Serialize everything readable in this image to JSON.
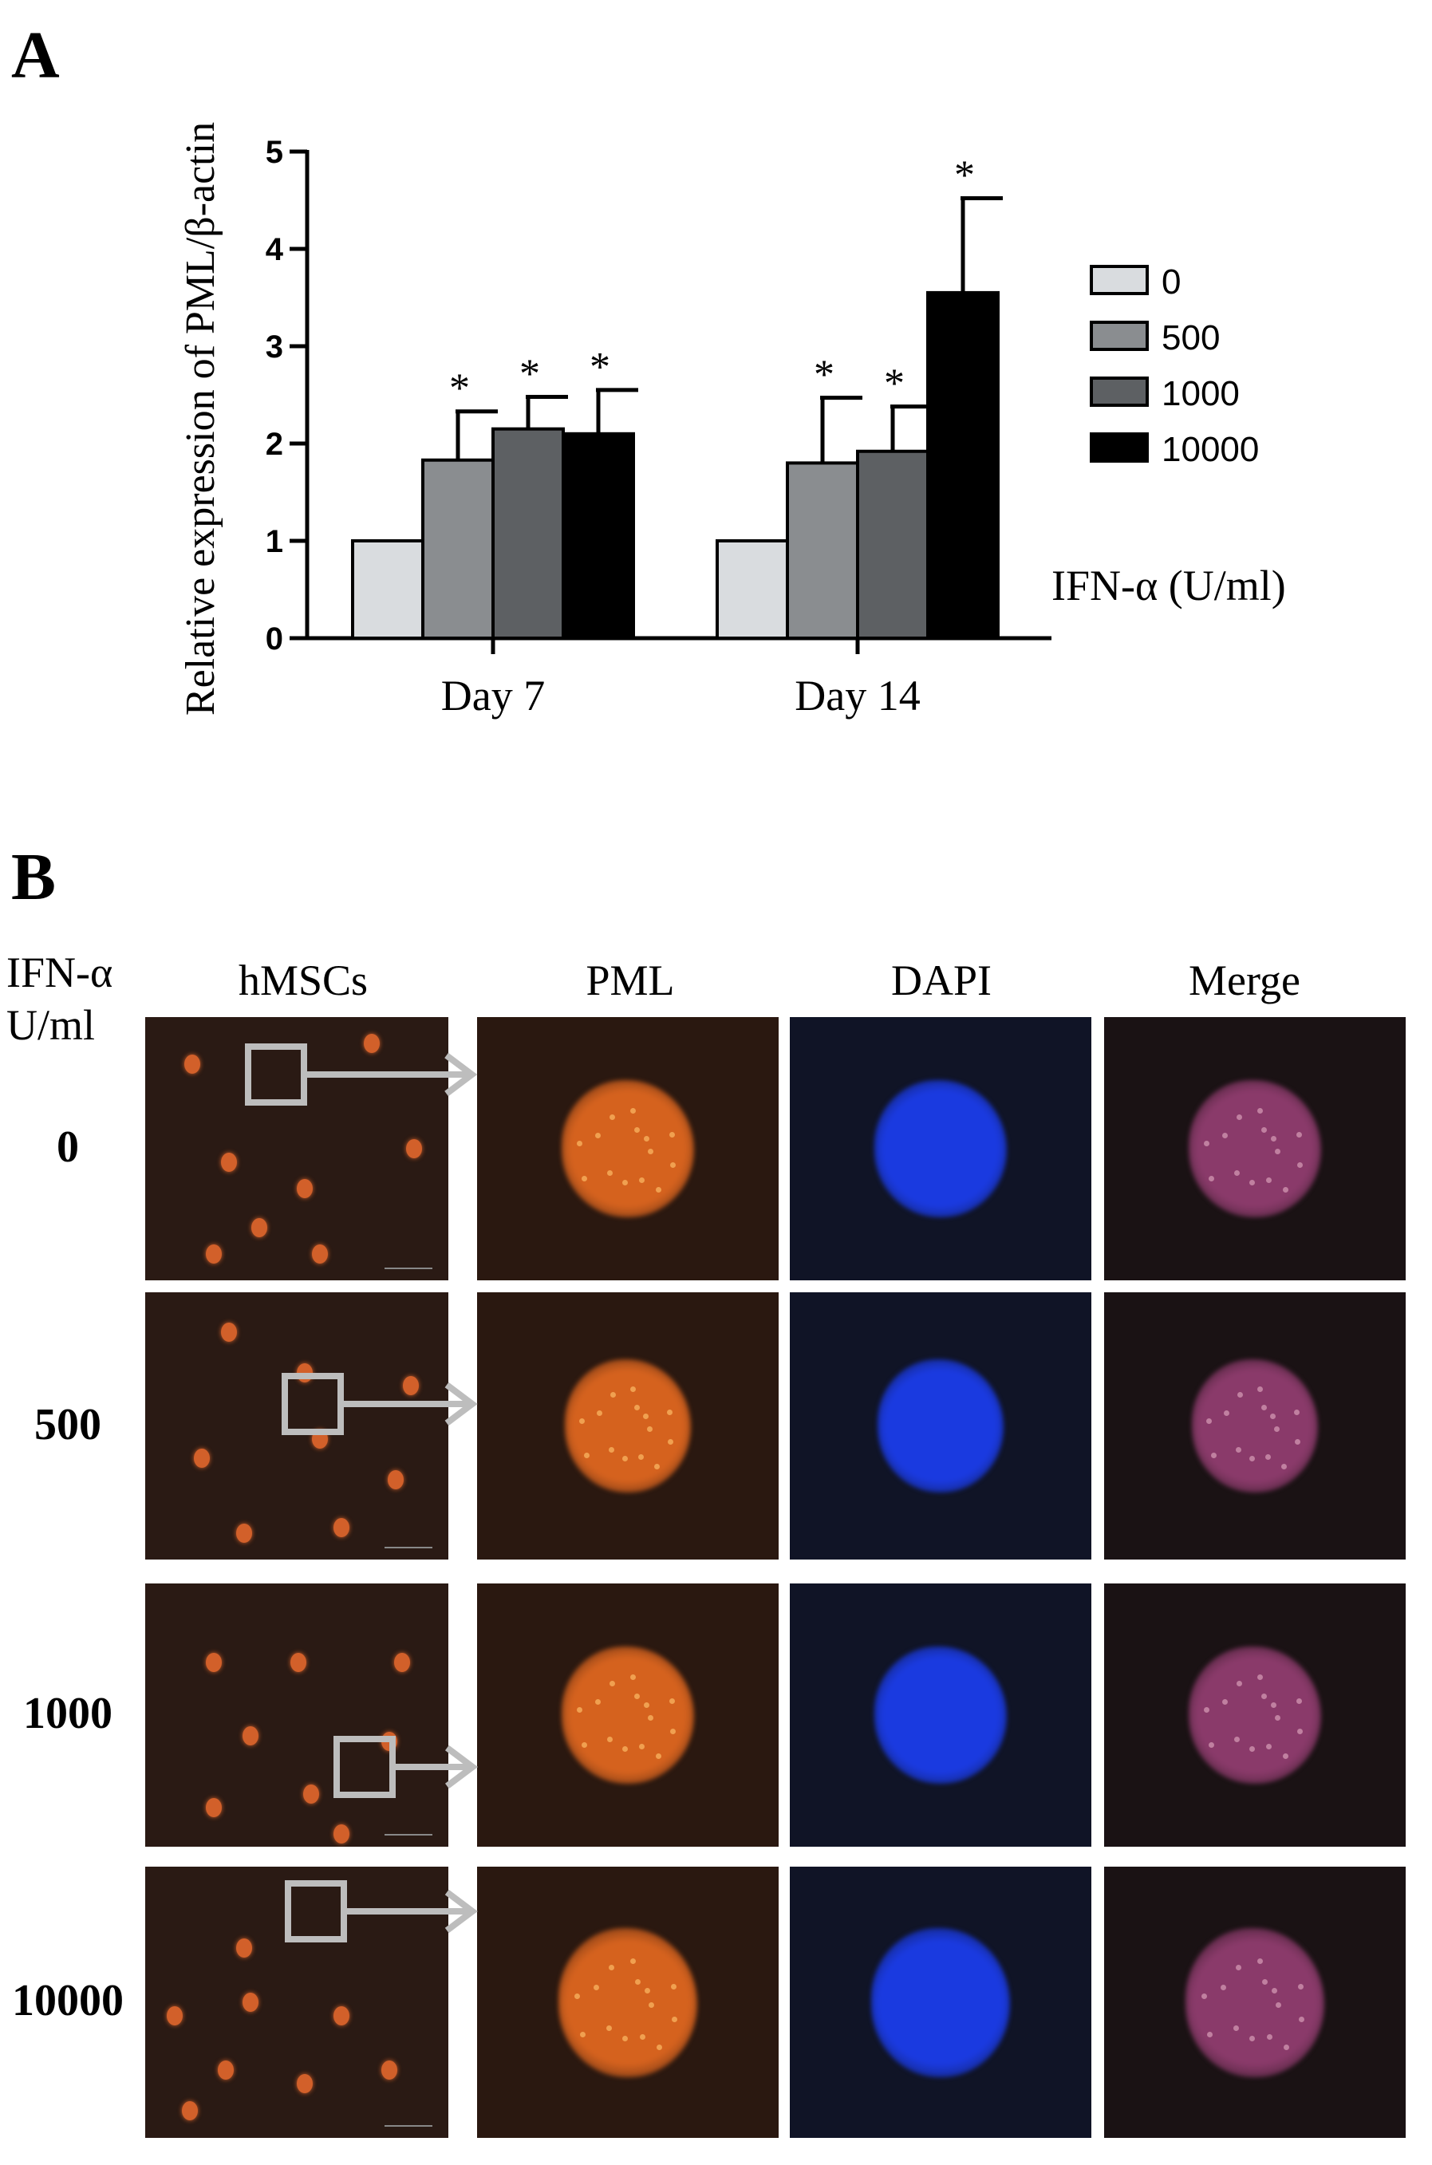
{
  "panel_a_letter": "A",
  "panel_b_letter": "B",
  "chart_data": {
    "type": "bar",
    "ylabel": "Relative expression of PML/β-actin",
    "xlabel": "IFN-α (U/ml)",
    "ylim": [
      0,
      5
    ],
    "yticks": [
      "0",
      "1",
      "2",
      "3",
      "4",
      "5"
    ],
    "categories": [
      "Day 7",
      "Day 14"
    ],
    "legend_placement": "right",
    "series": [
      {
        "name": "0",
        "color": "#d9dcdf",
        "values": [
          1.0,
          1.0
        ],
        "errors": [
          0,
          0
        ],
        "significant": [
          false,
          false
        ]
      },
      {
        "name": "500",
        "color": "#8a8d90",
        "values": [
          1.83,
          1.8
        ],
        "errors": [
          0.5,
          0.67
        ],
        "significant": [
          true,
          true
        ]
      },
      {
        "name": "1000",
        "color": "#5d6063",
        "values": [
          2.15,
          1.92
        ],
        "errors": [
          0.33,
          0.46
        ],
        "significant": [
          true,
          true
        ]
      },
      {
        "name": "10000",
        "color": "#000000",
        "values": [
          2.1,
          3.55
        ],
        "errors": [
          0.45,
          0.97
        ],
        "significant": [
          true,
          true
        ]
      }
    ],
    "significance_marker": "*"
  },
  "panel_b": {
    "row_header_title": "IFN-α U/ml",
    "row_header_title_line1": "IFN-α",
    "row_header_title_line2": "U/ml",
    "column_headers": [
      "hMSCs",
      "PML",
      "DAPI",
      "Merge"
    ],
    "rows": [
      {
        "dose": "0"
      },
      {
        "dose": "500"
      },
      {
        "dose": "1000"
      },
      {
        "dose": "10000"
      }
    ],
    "colors": {
      "pml_background": "#2a1810",
      "pml_nucleus": "#d5621e",
      "dapi_background": "#101426",
      "dapi_nucleus": "#1a3ae0",
      "merge_background": "#1a1214",
      "merge_nucleus": "#8a3a6a",
      "overview_background": "#2a1a14",
      "overview_cell": "#d2602a",
      "box_color": "#bdbdbd"
    }
  }
}
